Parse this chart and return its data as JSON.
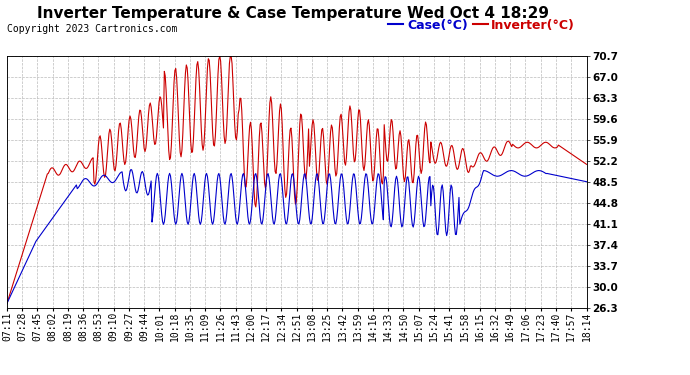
{
  "title": "Inverter Temperature & Case Temperature Wed Oct 4 18:29",
  "copyright": "Copyright 2023 Cartronics.com",
  "legend_case": "Case(°C)",
  "legend_inverter": "Inverter(°C)",
  "yticks": [
    26.3,
    30.0,
    33.7,
    37.4,
    41.1,
    44.8,
    48.5,
    52.2,
    55.9,
    59.6,
    63.3,
    67.0,
    70.7
  ],
  "ylim": [
    26.3,
    70.7
  ],
  "xtick_labels": [
    "07:11",
    "07:28",
    "07:45",
    "08:02",
    "08:19",
    "08:36",
    "08:53",
    "09:10",
    "09:27",
    "09:44",
    "10:01",
    "10:18",
    "10:35",
    "11:09",
    "11:26",
    "11:43",
    "12:00",
    "12:17",
    "12:34",
    "12:51",
    "13:08",
    "13:25",
    "13:42",
    "13:59",
    "14:16",
    "14:33",
    "14:50",
    "15:07",
    "15:24",
    "15:41",
    "15:58",
    "16:15",
    "16:32",
    "16:49",
    "17:06",
    "17:23",
    "17:40",
    "17:57",
    "18:14"
  ],
  "background_color": "#ffffff",
  "plot_bg_color": "#ffffff",
  "grid_color": "#bbbbbb",
  "case_color": "#0000cc",
  "inverter_color": "#cc0000",
  "title_fontsize": 11,
  "copyright_fontsize": 7,
  "tick_fontsize": 7,
  "legend_fontsize": 9
}
